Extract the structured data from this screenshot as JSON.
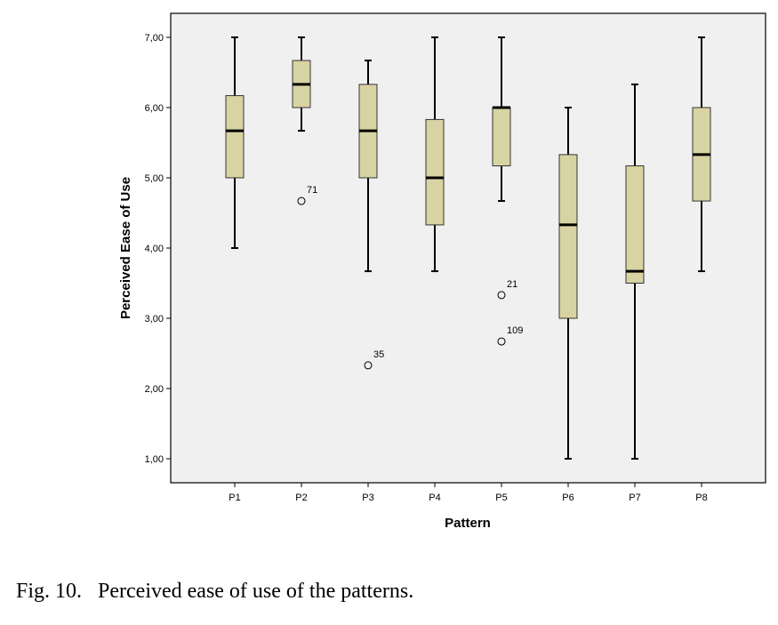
{
  "chart_data": {
    "type": "box",
    "xlabel": "Pattern",
    "ylabel": "Perceived Ease of Use",
    "ylim": [
      0.6,
      7.3
    ],
    "yticks": [
      "1,00",
      "2,00",
      "3,00",
      "4,00",
      "5,00",
      "6,00",
      "7,00"
    ],
    "ytick_values": [
      1,
      2,
      3,
      4,
      5,
      6,
      7
    ],
    "grid": false,
    "colors": {
      "box_fill": "#d8d3a2",
      "plot_background": "#f0f0f0",
      "stroke": "#000000"
    },
    "categories": [
      "P1",
      "P2",
      "P3",
      "P4",
      "P5",
      "P6",
      "P7",
      "P8"
    ],
    "boxes": [
      {
        "category": "P1",
        "min": 4.0,
        "q1": 5.0,
        "median": 5.67,
        "q3": 6.17,
        "max": 7.0
      },
      {
        "category": "P2",
        "min": 5.67,
        "q1": 6.0,
        "median": 6.33,
        "q3": 6.67,
        "max": 7.0
      },
      {
        "category": "P3",
        "min": 3.67,
        "q1": 5.0,
        "median": 5.67,
        "q3": 6.33,
        "max": 6.67
      },
      {
        "category": "P4",
        "min": 3.67,
        "q1": 4.33,
        "median": 5.0,
        "q3": 5.83,
        "max": 7.0
      },
      {
        "category": "P5",
        "min": 4.67,
        "q1": 5.17,
        "median": 6.0,
        "q3": 6.0,
        "max": 7.0
      },
      {
        "category": "P6",
        "min": 1.0,
        "q1": 3.0,
        "median": 4.33,
        "q3": 5.33,
        "max": 6.0
      },
      {
        "category": "P7",
        "min": 1.0,
        "q1": 3.5,
        "median": 3.67,
        "q3": 5.17,
        "max": 6.33
      },
      {
        "category": "P8",
        "min": 3.67,
        "q1": 4.67,
        "median": 5.33,
        "q3": 6.0,
        "max": 7.0
      }
    ],
    "outliers": [
      {
        "category": "P2",
        "value": 4.67,
        "label": "71"
      },
      {
        "category": "P3",
        "value": 2.33,
        "label": "35"
      },
      {
        "category": "P5",
        "value": 3.33,
        "label": "21"
      },
      {
        "category": "P5",
        "value": 2.67,
        "label": "109"
      }
    ]
  },
  "caption": {
    "label": "Fig. 10.",
    "text": "Perceived ease of use of the patterns."
  }
}
